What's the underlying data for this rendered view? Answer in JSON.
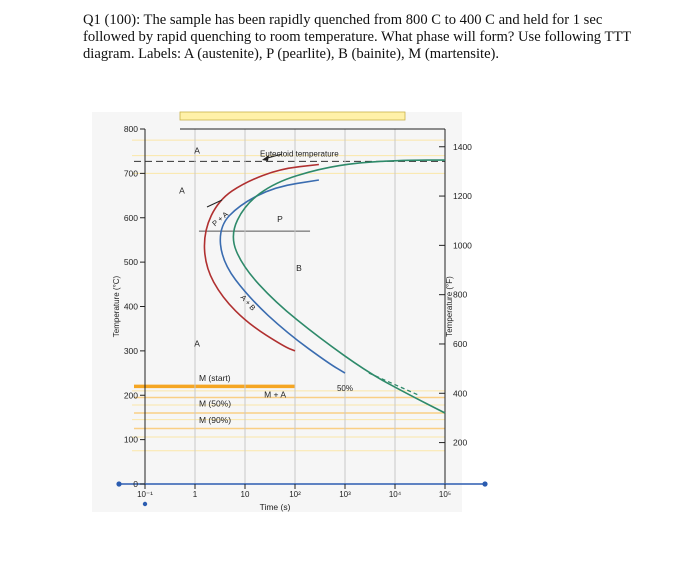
{
  "question": {
    "line1": "Q1 (100): The sample has been rapidly quenched from 800 C to 400 C and held for 1 sec",
    "line2": "followed by rapid quenching to room temperature. What phase will form? Use following TTT",
    "line3": "diagram. Labels: A (austenite), P (pearlite), B (bainite), M (martensite)."
  },
  "chart_data": {
    "type": "line",
    "xlabel": "Time (s)",
    "ylabel": "Temperature (°C)",
    "ylabel_right": "Temperature (°F)",
    "x_scale": "log",
    "xlim": [
      0.1,
      100000
    ],
    "ylim": [
      0,
      800
    ],
    "x_ticks": [
      "10⁻¹",
      "1",
      "10",
      "10²",
      "10³",
      "10⁴",
      "10⁵"
    ],
    "y_ticks": [
      "0",
      "100",
      "200",
      "300",
      "400",
      "500",
      "600",
      "700",
      "800"
    ],
    "y_ticks_right": [
      "200",
      "400",
      "600",
      "800",
      "1000",
      "1200",
      "1400"
    ],
    "eutectoid_temperature_c": 727,
    "series": [
      {
        "color": "#b03030",
        "points": [
          [
            300,
            720
          ],
          [
            50,
            710
          ],
          [
            10,
            680
          ],
          [
            3,
            640
          ],
          [
            1.5,
            570
          ],
          [
            1.6,
            490
          ],
          [
            3.5,
            420
          ],
          [
            12,
            360
          ],
          [
            60,
            310
          ],
          [
            100,
            300
          ]
        ]
      },
      {
        "color": "#3a6cb0",
        "points": [
          [
            300,
            685
          ],
          [
            40,
            670
          ],
          [
            8,
            630
          ],
          [
            3,
            580
          ],
          [
            3.5,
            500
          ],
          [
            12,
            420
          ],
          [
            70,
            340
          ],
          [
            500,
            270
          ],
          [
            1000,
            250
          ]
        ]
      },
      {
        "color": "#2e8a6a",
        "points": [
          [
            100000,
            730
          ],
          [
            20000,
            730
          ],
          [
            2000,
            725
          ],
          [
            300,
            710
          ],
          [
            40,
            680
          ],
          [
            10,
            630
          ],
          [
            5,
            560
          ],
          [
            9,
            490
          ],
          [
            40,
            410
          ],
          [
            300,
            330
          ],
          [
            3000,
            250
          ],
          [
            20000,
            200
          ],
          [
            100000,
            160
          ]
        ]
      }
    ],
    "annotations": {
      "eutectoid": "Eutectoid temperature",
      "a_top": "A",
      "a_left": "A",
      "a_low": "A",
      "p_plus_a": "P + A",
      "p": "P",
      "b": "B",
      "a_plus_b": "A + B",
      "m_start": "M (start)",
      "m_plus_a": "M + A",
      "m_50": "M (50%)",
      "m_90": "M (90%)",
      "fifty_percent": "50%"
    },
    "colors": {
      "m_start": "#f5a623",
      "m_guides": "#f9cf85",
      "top_band": "#fff1a8"
    }
  }
}
